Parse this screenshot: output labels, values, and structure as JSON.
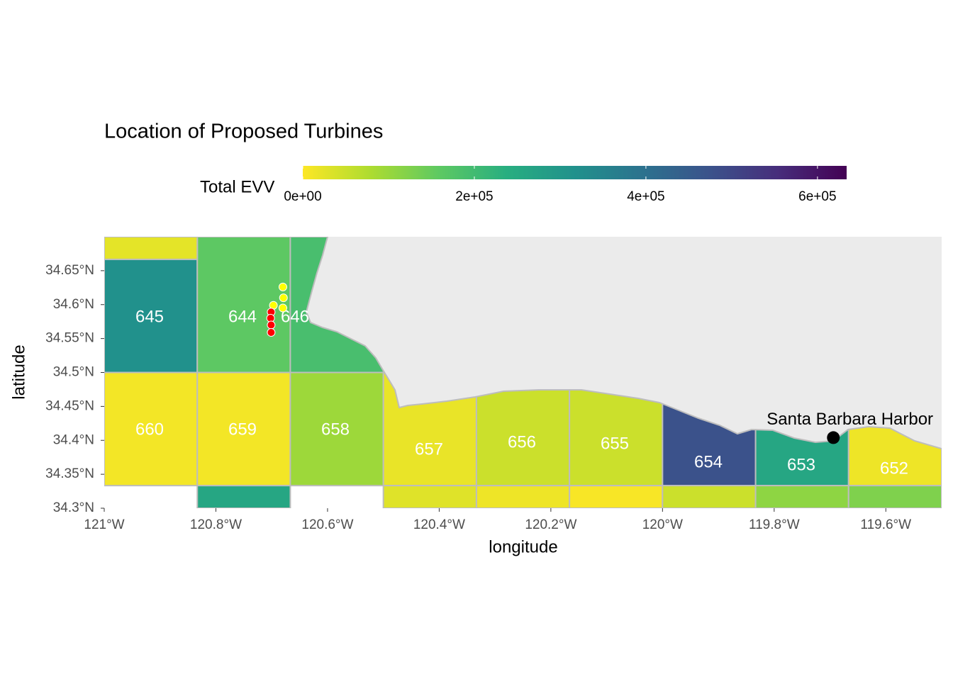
{
  "title": "Location of Proposed Turbines",
  "legend": {
    "title": "Total EVV",
    "lim": [
      0,
      634000
    ],
    "ticks": [
      {
        "value": 0,
        "label": "0e+00"
      },
      {
        "value": 200000,
        "label": "2e+05"
      },
      {
        "value": 400000,
        "label": "4e+05"
      },
      {
        "value": 600000,
        "label": "6e+05"
      }
    ]
  },
  "axes": {
    "xlabel": "longitude",
    "ylabel": "latitude",
    "xlim": [
      -121,
      -119.5
    ],
    "ylim": [
      34.3,
      34.7
    ],
    "xticks": [
      {
        "value": -121,
        "label": "121°W"
      },
      {
        "value": -120.8,
        "label": "120.8°W"
      },
      {
        "value": -120.6,
        "label": "120.6°W"
      },
      {
        "value": -120.4,
        "label": "120.4°W"
      },
      {
        "value": -120.2,
        "label": "120.2°W"
      },
      {
        "value": -120,
        "label": "120°W"
      },
      {
        "value": -119.8,
        "label": "119.8°W"
      },
      {
        "value": -119.6,
        "label": "119.6°W"
      }
    ],
    "yticks": [
      {
        "value": 34.3,
        "label": "34.3°N"
      },
      {
        "value": 34.35,
        "label": "34.35°N"
      },
      {
        "value": 34.4,
        "label": "34.4°N"
      },
      {
        "value": 34.45,
        "label": "34.45°N"
      },
      {
        "value": 34.5,
        "label": "34.5°N"
      },
      {
        "value": 34.55,
        "label": "34.55°N"
      },
      {
        "value": 34.6,
        "label": "34.6°N"
      },
      {
        "value": 34.65,
        "label": "34.65°N"
      }
    ]
  },
  "blocks": [
    {
      "label": "645",
      "lon": [
        -121,
        -120.8333
      ],
      "lat": [
        34.5,
        34.6667
      ],
      "value": 317000
    },
    {
      "label": "644",
      "lon": [
        -120.8333,
        -120.6667
      ],
      "lat": [
        34.5,
        34.7
      ],
      "value": 160000
    },
    {
      "label": "646",
      "lon": [
        -120.6667,
        -120.5
      ],
      "lat": [
        34.5,
        34.7
      ],
      "value": 190000
    },
    {
      "label": "660",
      "lon": [
        -121,
        -120.8333
      ],
      "lat": [
        34.3333,
        34.5
      ],
      "value": 10000
    },
    {
      "label": "659",
      "lon": [
        -120.8333,
        -120.6667
      ],
      "lat": [
        34.3333,
        34.5
      ],
      "value": 10000
    },
    {
      "label": "658",
      "lon": [
        -120.6667,
        -120.5
      ],
      "lat": [
        34.3333,
        34.5
      ],
      "value": 95000
    },
    {
      "label": "657",
      "lon": [
        -120.5,
        -120.3333
      ],
      "lat": [
        34.3333,
        34.5
      ],
      "value": 20000
    },
    {
      "label": "656",
      "lon": [
        -120.3333,
        -120.1667
      ],
      "lat": [
        34.3333,
        34.5
      ],
      "value": 50000
    },
    {
      "label": "655",
      "lon": [
        -120.1667,
        -120
      ],
      "lat": [
        34.3333,
        34.5
      ],
      "value": 50000
    },
    {
      "label": "654",
      "lon": [
        -120,
        -119.8333
      ],
      "lat": [
        34.3333,
        34.5
      ],
      "value": 475000
    },
    {
      "label": "653",
      "lon": [
        -119.8333,
        -119.6667
      ],
      "lat": [
        34.3333,
        34.5
      ],
      "value": 260000
    },
    {
      "label": "652",
      "lon": [
        -119.6667,
        -119.5
      ],
      "lat": [
        34.3333,
        34.5
      ],
      "value": 15000
    },
    {
      "label": null,
      "lon": [
        -121,
        -120.8333
      ],
      "lat": [
        34.6667,
        34.7
      ],
      "value": 25000
    },
    {
      "label": null,
      "lon": [
        -120.8333,
        -120.6667
      ],
      "lat": [
        34.3,
        34.3333
      ],
      "value": 260000
    },
    {
      "label": null,
      "lon": [
        -120.5,
        -120.3333
      ],
      "lat": [
        34.3,
        34.3333
      ],
      "value": 30000
    },
    {
      "label": null,
      "lon": [
        -120.3333,
        -120.1667
      ],
      "lat": [
        34.3,
        34.3333
      ],
      "value": 15000
    },
    {
      "label": null,
      "lon": [
        -120.1667,
        -120
      ],
      "lat": [
        34.3,
        34.3333
      ],
      "value": 5000
    },
    {
      "label": null,
      "lon": [
        -120,
        -119.8333
      ],
      "lat": [
        34.3,
        34.3333
      ],
      "value": 50000
    },
    {
      "label": null,
      "lon": [
        -119.8333,
        -119.6667
      ],
      "lat": [
        34.3,
        34.3333
      ],
      "value": 110000
    },
    {
      "label": null,
      "lon": [
        -119.6667,
        -119.5
      ],
      "lat": [
        34.3,
        34.3333
      ],
      "value": 125000
    }
  ],
  "turbines": [
    {
      "color": "#ffff00",
      "lon": [
        -120.68,
        -120.679,
        -120.68,
        -120.697
      ],
      "lat": [
        34.626,
        34.61,
        34.595,
        34.599
      ]
    },
    {
      "color": "#ff0000",
      "lon": [
        -120.701,
        -120.702,
        -120.701,
        -120.701
      ],
      "lat": [
        34.589,
        34.58,
        34.57,
        34.559
      ]
    }
  ],
  "harbor": {
    "label": "Santa Barbara Harbor",
    "lon": -119.694,
    "lat": 34.404
  }
}
